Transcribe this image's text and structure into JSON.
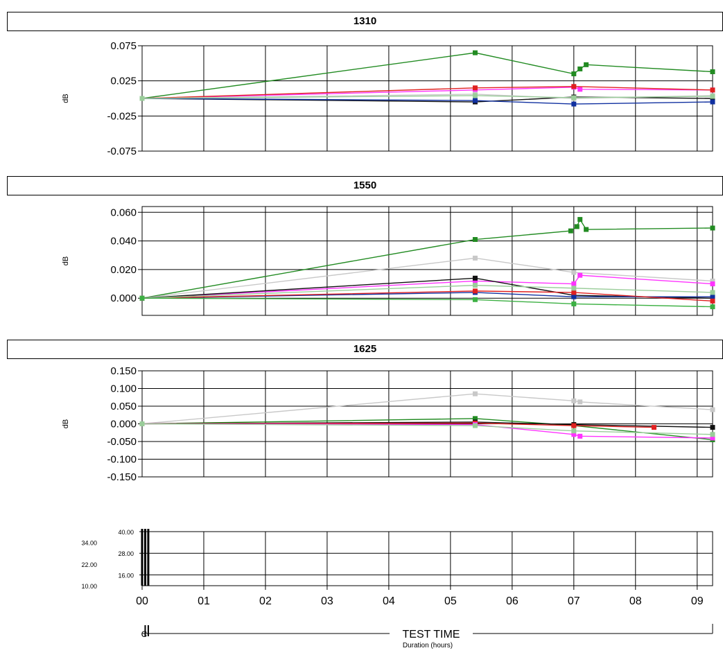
{
  "chart_data": [
    {
      "type": "line",
      "title": "1310",
      "ylabel": "dB",
      "ylim": [
        -0.075,
        0.075
      ],
      "yticks": [
        0.075,
        0.025,
        -0.025,
        -0.075
      ],
      "ytick_labels": [
        "0.075",
        "0.025",
        "-0.025",
        "-0.075"
      ],
      "xlim": [
        0,
        9.25
      ],
      "grid": true,
      "series": [
        {
          "color": "#228B22",
          "marker": true,
          "x": [
            0.0,
            5.4,
            7.0,
            7.1,
            7.2,
            9.25
          ],
          "y": [
            0.0,
            0.065,
            0.035,
            0.042,
            0.048,
            0.038
          ]
        },
        {
          "color": "#FF33FF",
          "marker": true,
          "x": [
            0.0,
            5.4,
            7.0,
            7.1,
            9.25
          ],
          "y": [
            0.0,
            0.012,
            0.016,
            0.013,
            0.012
          ]
        },
        {
          "color": "#E02020",
          "marker": true,
          "x": [
            0.0,
            5.4,
            7.0,
            9.25
          ],
          "y": [
            0.0,
            0.015,
            0.017,
            0.012
          ]
        },
        {
          "color": "#101010",
          "marker": true,
          "x": [
            0.0,
            5.4,
            7.0,
            9.25
          ],
          "y": [
            0.0,
            -0.005,
            0.002,
            0.0
          ]
        },
        {
          "color": "#1030A0",
          "marker": true,
          "x": [
            0.0,
            5.4,
            7.0,
            9.25
          ],
          "y": [
            0.0,
            -0.003,
            -0.008,
            -0.005
          ]
        },
        {
          "color": "#C8C8C8",
          "marker": true,
          "x": [
            0.0,
            5.4,
            7.0,
            9.25
          ],
          "y": [
            0.0,
            0.006,
            0.0,
            0.004
          ]
        },
        {
          "color": "#9ACD9A",
          "marker": true,
          "x": [
            0.0,
            5.4,
            7.0,
            9.25
          ],
          "y": [
            0.0,
            0.004,
            0.001,
            0.003
          ]
        }
      ]
    },
    {
      "type": "line",
      "title": "1550",
      "ylabel": "dB",
      "ylim": [
        -0.012,
        0.064
      ],
      "yticks": [
        0.06,
        0.04,
        0.02,
        0.0
      ],
      "ytick_labels": [
        "0.060",
        "0.040",
        "0.020",
        "0.000"
      ],
      "xlim": [
        0,
        9.25
      ],
      "grid": true,
      "series": [
        {
          "color": "#228B22",
          "marker": true,
          "x": [
            0.0,
            5.4,
            6.95,
            7.05,
            7.1,
            7.2,
            9.25
          ],
          "y": [
            0.0,
            0.041,
            0.047,
            0.05,
            0.055,
            0.048,
            0.049
          ]
        },
        {
          "color": "#C8C8C8",
          "marker": true,
          "x": [
            0.0,
            5.4,
            7.0,
            9.25
          ],
          "y": [
            0.0,
            0.028,
            0.018,
            0.012
          ]
        },
        {
          "color": "#FF33FF",
          "marker": true,
          "x": [
            0.0,
            5.4,
            7.0,
            7.1,
            9.25
          ],
          "y": [
            0.0,
            0.012,
            0.01,
            0.016,
            0.01
          ]
        },
        {
          "color": "#101010",
          "marker": true,
          "x": [
            0.0,
            5.4,
            7.0,
            9.25
          ],
          "y": [
            0.0,
            0.014,
            0.002,
            0.0
          ]
        },
        {
          "color": "#1030A0",
          "marker": true,
          "x": [
            0.0,
            5.4,
            7.0,
            9.25
          ],
          "y": [
            0.0,
            0.004,
            0.001,
            0.001
          ]
        },
        {
          "color": "#E02020",
          "marker": true,
          "x": [
            0.0,
            5.4,
            7.0,
            9.25
          ],
          "y": [
            0.0,
            0.005,
            0.004,
            -0.002
          ]
        },
        {
          "color": "#9ACD9A",
          "marker": true,
          "x": [
            0.0,
            5.4,
            7.0,
            9.25
          ],
          "y": [
            0.0,
            0.009,
            0.007,
            0.004
          ]
        },
        {
          "color": "#3CB043",
          "marker": true,
          "x": [
            0.0,
            5.4,
            7.0,
            9.25
          ],
          "y": [
            0.0,
            -0.001,
            -0.004,
            -0.006
          ]
        }
      ]
    },
    {
      "type": "line",
      "title": "1625",
      "ylabel": "dB",
      "ylim": [
        -0.15,
        0.15
      ],
      "yticks": [
        0.15,
        0.1,
        0.05,
        0.0,
        -0.05,
        -0.1,
        -0.15
      ],
      "ytick_labels": [
        "0.150",
        "0.100",
        "0.050",
        "0.000",
        "-0.050",
        "-0.100",
        "-0.150"
      ],
      "xlim": [
        0,
        9.25
      ],
      "grid": true,
      "series": [
        {
          "color": "#C8C8C8",
          "marker": true,
          "x": [
            0.0,
            5.4,
            7.0,
            7.1,
            9.25
          ],
          "y": [
            0.0,
            0.085,
            0.065,
            0.062,
            0.04
          ]
        },
        {
          "color": "#228B22",
          "marker": true,
          "x": [
            0.0,
            5.4,
            7.0,
            9.25
          ],
          "y": [
            0.0,
            0.015,
            -0.005,
            -0.045
          ]
        },
        {
          "color": "#101010",
          "marker": true,
          "x": [
            0.0,
            5.4,
            7.0,
            9.25
          ],
          "y": [
            0.0,
            0.005,
            -0.002,
            -0.01
          ]
        },
        {
          "color": "#E02020",
          "marker": true,
          "x": [
            0.0,
            5.4,
            7.0,
            8.3
          ],
          "y": [
            0.0,
            0.002,
            -0.005,
            -0.01
          ]
        },
        {
          "color": "#FF33FF",
          "marker": true,
          "x": [
            0.0,
            5.4,
            7.0,
            7.1,
            9.25
          ],
          "y": [
            0.0,
            -0.002,
            -0.03,
            -0.035,
            -0.04
          ]
        },
        {
          "color": "#9ACD9A",
          "marker": true,
          "x": [
            0.0,
            5.4,
            7.0,
            9.25
          ],
          "y": [
            0.0,
            -0.005,
            -0.02,
            -0.03
          ]
        }
      ]
    },
    {
      "type": "line",
      "title": "",
      "ylim": [
        10,
        40
      ],
      "yticks_inner": [
        40,
        28,
        16
      ],
      "yticks_inner_labels": [
        "40.00",
        "28.00",
        "16.00"
      ],
      "yticks_outer": [
        34,
        22,
        10
      ],
      "yticks_outer_labels": [
        "34.00",
        "22.00",
        "10.00"
      ],
      "xlim": [
        0,
        9.25
      ],
      "grid": true,
      "xticks": [
        0,
        1,
        2,
        3,
        4,
        5,
        6,
        7,
        8,
        9
      ],
      "xtick_labels": [
        "00",
        "01",
        "02",
        "03",
        "04",
        "05",
        "06",
        "07",
        "08",
        "09"
      ],
      "vertical_markers": [
        0.0,
        0.05,
        0.1
      ],
      "xlabel": "TEST TIME",
      "xsublabel": "Duration (hours)",
      "range_marker_label": "C",
      "series": []
    }
  ]
}
